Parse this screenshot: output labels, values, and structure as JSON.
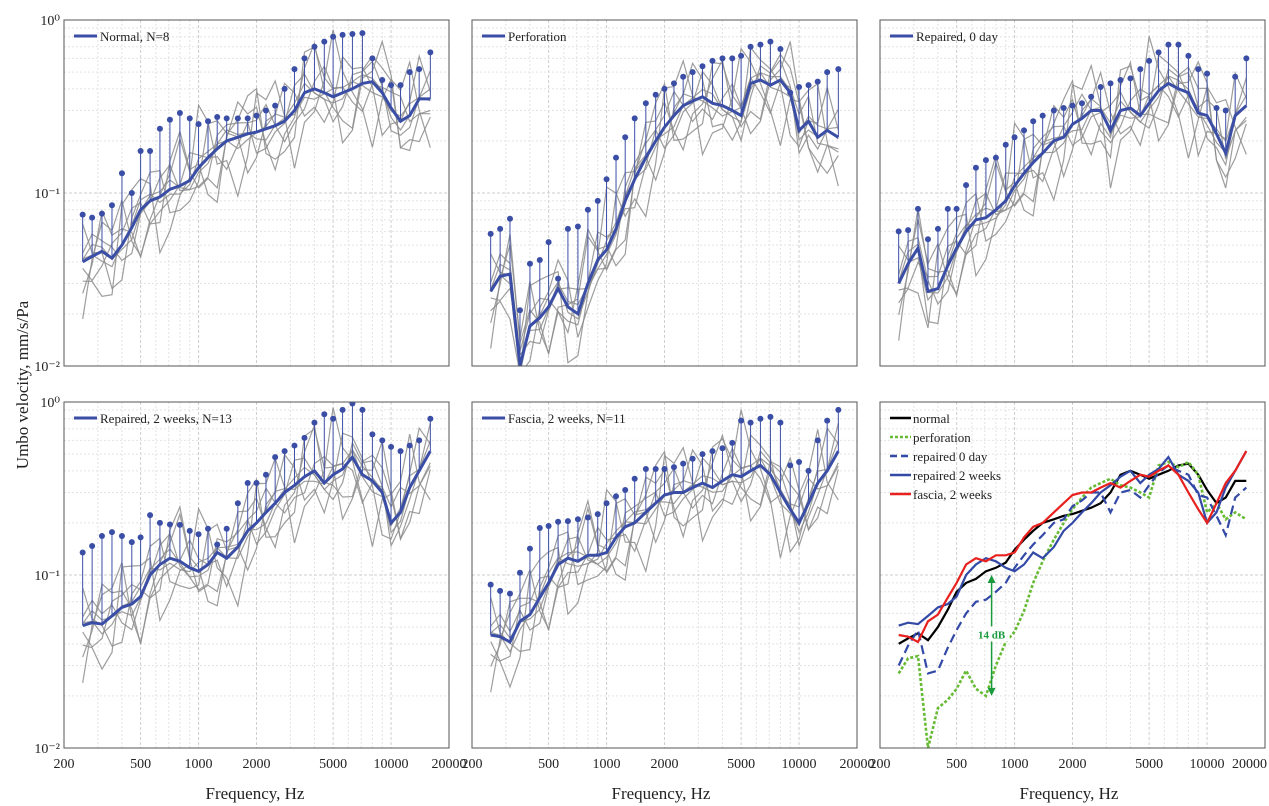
{
  "figure": {
    "ylabel": "Umbo velocity, mm/s/Pa",
    "xlabel": "Frequency, Hz"
  },
  "colors": {
    "mean": "#3b4ea6",
    "individual": "#8c8c8c",
    "normal": "#000000",
    "perforation": "#66bb33",
    "repaired": "#3349a6",
    "fascia": "#e8201e",
    "annotation": "#1a9a3c"
  },
  "axes": {
    "xscale": "log",
    "yscale": "log",
    "xlim": [
      200,
      20000
    ],
    "ylim": [
      0.01,
      1
    ],
    "xticks": [
      200,
      500,
      1000,
      2000,
      5000,
      10000,
      20000
    ],
    "xtick_labels": [
      "200",
      "500",
      "1000",
      "2000",
      "5000",
      "10000",
      "20000"
    ],
    "ytick_labels": [
      "10⁻²",
      "10⁻¹",
      "10⁰"
    ],
    "grid": true
  },
  "chart_data": [
    {
      "type": "line",
      "legend": "Normal, N=8",
      "legend_position": "top-left",
      "freq": [
        250,
        280,
        315,
        355,
        400,
        450,
        500,
        560,
        630,
        710,
        800,
        900,
        1000,
        1120,
        1250,
        1400,
        1600,
        1800,
        2000,
        2240,
        2500,
        2800,
        3150,
        3550,
        4000,
        4500,
        5000,
        5600,
        6300,
        7100,
        8000,
        9000,
        10000,
        11200,
        12500,
        14000,
        16000
      ],
      "series": [
        {
          "name": "mean",
          "values": [
            0.04,
            0.043,
            0.046,
            0.042,
            0.05,
            0.063,
            0.08,
            0.09,
            0.095,
            0.105,
            0.11,
            0.118,
            0.14,
            0.16,
            0.18,
            0.2,
            0.21,
            0.22,
            0.225,
            0.235,
            0.245,
            0.26,
            0.3,
            0.38,
            0.4,
            0.38,
            0.36,
            0.38,
            0.4,
            0.43,
            0.44,
            0.38,
            0.31,
            0.26,
            0.28,
            0.35,
            0.35
          ]
        },
        {
          "name": "mean + SD",
          "values": [
            0.075,
            0.072,
            0.076,
            0.085,
            0.13,
            0.1,
            0.175,
            0.175,
            0.235,
            0.265,
            0.29,
            0.27,
            0.25,
            0.26,
            0.275,
            0.27,
            0.27,
            0.27,
            0.28,
            0.3,
            0.32,
            0.4,
            0.52,
            0.6,
            0.7,
            0.75,
            0.8,
            0.82,
            0.83,
            0.84,
            0.6,
            0.45,
            0.42,
            0.42,
            0.5,
            0.52,
            0.65
          ]
        }
      ]
    },
    {
      "type": "line",
      "legend": "Perforation",
      "legend_position": "top-left",
      "freq": [
        250,
        280,
        315,
        355,
        400,
        450,
        500,
        560,
        630,
        710,
        800,
        900,
        1000,
        1120,
        1250,
        1400,
        1600,
        1800,
        2000,
        2240,
        2500,
        2800,
        3150,
        3550,
        4000,
        4500,
        5000,
        5600,
        6300,
        7100,
        8000,
        9000,
        10000,
        11200,
        12500,
        14000,
        16000
      ],
      "series": [
        {
          "name": "mean",
          "values": [
            0.027,
            0.033,
            0.034,
            0.01,
            0.017,
            0.019,
            0.022,
            0.028,
            0.022,
            0.02,
            0.03,
            0.041,
            0.047,
            0.062,
            0.09,
            0.12,
            0.16,
            0.2,
            0.24,
            0.28,
            0.32,
            0.34,
            0.36,
            0.33,
            0.32,
            0.3,
            0.28,
            0.43,
            0.45,
            0.42,
            0.45,
            0.38,
            0.23,
            0.26,
            0.21,
            0.23,
            0.21
          ]
        },
        {
          "name": "mean + SD",
          "values": [
            0.058,
            0.062,
            0.071,
            0.021,
            0.039,
            0.041,
            0.052,
            0.032,
            0.062,
            0.064,
            0.08,
            0.09,
            0.12,
            0.16,
            0.21,
            0.27,
            0.33,
            0.37,
            0.4,
            0.43,
            0.47,
            0.5,
            0.54,
            0.58,
            0.6,
            0.6,
            0.62,
            0.7,
            0.72,
            0.75,
            0.68,
            0.38,
            0.41,
            0.42,
            0.44,
            0.5,
            0.52
          ]
        }
      ]
    },
    {
      "type": "line",
      "legend": "Repaired, 0 day",
      "legend_position": "top-left",
      "freq": [
        250,
        280,
        315,
        355,
        400,
        450,
        500,
        560,
        630,
        710,
        800,
        900,
        1000,
        1120,
        1250,
        1400,
        1600,
        1800,
        2000,
        2240,
        2500,
        2800,
        3150,
        3550,
        4000,
        4500,
        5000,
        5600,
        6300,
        7100,
        8000,
        9000,
        10000,
        11200,
        12500,
        14000,
        16000
      ],
      "series": [
        {
          "name": "mean",
          "values": [
            0.03,
            0.039,
            0.048,
            0.027,
            0.028,
            0.038,
            0.048,
            0.06,
            0.07,
            0.072,
            0.08,
            0.09,
            0.11,
            0.13,
            0.15,
            0.17,
            0.2,
            0.21,
            0.25,
            0.27,
            0.3,
            0.3,
            0.23,
            0.3,
            0.31,
            0.28,
            0.33,
            0.39,
            0.43,
            0.4,
            0.38,
            0.29,
            0.28,
            0.22,
            0.17,
            0.28,
            0.32
          ]
        },
        {
          "name": "mean + SD",
          "values": [
            0.06,
            0.061,
            0.081,
            0.054,
            0.062,
            0.081,
            0.081,
            0.111,
            0.14,
            0.155,
            0.16,
            0.19,
            0.21,
            0.23,
            0.26,
            0.28,
            0.3,
            0.31,
            0.32,
            0.33,
            0.36,
            0.41,
            0.43,
            0.45,
            0.46,
            0.52,
            0.58,
            0.65,
            0.72,
            0.72,
            0.62,
            0.52,
            0.49,
            0.31,
            0.3,
            0.47,
            0.6
          ]
        }
      ]
    },
    {
      "type": "line",
      "legend": "Repaired, 2 weeks, N=13",
      "legend_position": "top-left",
      "freq": [
        250,
        280,
        315,
        355,
        400,
        450,
        500,
        560,
        630,
        710,
        800,
        900,
        1000,
        1120,
        1250,
        1400,
        1600,
        1800,
        2000,
        2240,
        2500,
        2800,
        3150,
        3550,
        4000,
        4500,
        5000,
        5600,
        6300,
        7100,
        8000,
        9000,
        10000,
        11200,
        12500,
        14000,
        16000
      ],
      "series": [
        {
          "name": "mean",
          "values": [
            0.051,
            0.053,
            0.052,
            0.058,
            0.065,
            0.068,
            0.075,
            0.1,
            0.115,
            0.125,
            0.12,
            0.11,
            0.105,
            0.115,
            0.135,
            0.125,
            0.145,
            0.18,
            0.2,
            0.23,
            0.26,
            0.3,
            0.33,
            0.37,
            0.4,
            0.34,
            0.38,
            0.41,
            0.48,
            0.38,
            0.35,
            0.3,
            0.2,
            0.23,
            0.32,
            0.4,
            0.52
          ]
        },
        {
          "name": "mean + SD",
          "values": [
            0.135,
            0.147,
            0.168,
            0.177,
            0.168,
            0.155,
            0.165,
            0.222,
            0.2,
            0.196,
            0.195,
            0.18,
            0.172,
            0.185,
            0.15,
            0.185,
            0.26,
            0.34,
            0.34,
            0.38,
            0.48,
            0.52,
            0.56,
            0.62,
            0.76,
            0.85,
            0.8,
            0.9,
            0.98,
            0.9,
            0.65,
            0.6,
            0.55,
            0.52,
            0.56,
            0.6,
            0.8
          ]
        }
      ]
    },
    {
      "type": "line",
      "legend": "Fascia, 2 weeks, N=11",
      "legend_position": "top-left",
      "freq": [
        250,
        280,
        315,
        355,
        400,
        450,
        500,
        560,
        630,
        710,
        800,
        900,
        1000,
        1120,
        1250,
        1400,
        1600,
        1800,
        2000,
        2240,
        2500,
        2800,
        3150,
        3550,
        4000,
        4500,
        5000,
        5600,
        6300,
        7100,
        8000,
        9000,
        10000,
        11200,
        12500,
        14000,
        16000
      ],
      "series": [
        {
          "name": "mean",
          "values": [
            0.045,
            0.044,
            0.041,
            0.054,
            0.059,
            0.074,
            0.09,
            0.115,
            0.125,
            0.12,
            0.13,
            0.13,
            0.135,
            0.165,
            0.19,
            0.2,
            0.23,
            0.26,
            0.29,
            0.3,
            0.3,
            0.32,
            0.34,
            0.32,
            0.35,
            0.38,
            0.37,
            0.4,
            0.43,
            0.38,
            0.3,
            0.24,
            0.2,
            0.26,
            0.34,
            0.4,
            0.52
          ]
        },
        {
          "name": "mean + SD",
          "values": [
            0.088,
            0.081,
            0.078,
            0.103,
            0.142,
            0.187,
            0.192,
            0.203,
            0.205,
            0.21,
            0.215,
            0.225,
            0.26,
            0.285,
            0.31,
            0.36,
            0.41,
            0.41,
            0.41,
            0.42,
            0.44,
            0.47,
            0.5,
            0.52,
            0.54,
            0.58,
            0.78,
            0.76,
            0.8,
            0.82,
            0.76,
            0.43,
            0.45,
            0.4,
            0.6,
            0.78,
            0.9
          ]
        }
      ]
    },
    {
      "type": "line",
      "legend_position": "top-left",
      "freq": [
        250,
        280,
        315,
        355,
        400,
        450,
        500,
        560,
        630,
        710,
        800,
        900,
        1000,
        1120,
        1250,
        1400,
        1600,
        1800,
        2000,
        2240,
        2500,
        2800,
        3150,
        3550,
        4000,
        4500,
        5000,
        5600,
        6300,
        7100,
        8000,
        9000,
        10000,
        11200,
        12500,
        14000,
        16000
      ],
      "series": [
        {
          "name": "normal",
          "values": [
            0.04,
            0.043,
            0.046,
            0.042,
            0.05,
            0.063,
            0.08,
            0.09,
            0.095,
            0.105,
            0.11,
            0.118,
            0.14,
            0.16,
            0.18,
            0.2,
            0.21,
            0.22,
            0.225,
            0.235,
            0.245,
            0.26,
            0.3,
            0.38,
            0.4,
            0.38,
            0.36,
            0.38,
            0.4,
            0.43,
            0.44,
            0.38,
            0.31,
            0.26,
            0.28,
            0.35,
            0.35
          ]
        },
        {
          "name": "perforation",
          "values": [
            0.027,
            0.033,
            0.034,
            0.01,
            0.017,
            0.019,
            0.022,
            0.028,
            0.022,
            0.02,
            0.03,
            0.041,
            0.047,
            0.062,
            0.09,
            0.12,
            0.16,
            0.2,
            0.24,
            0.28,
            0.32,
            0.34,
            0.36,
            0.33,
            0.32,
            0.3,
            0.28,
            0.43,
            0.45,
            0.42,
            0.45,
            0.38,
            0.23,
            0.26,
            0.21,
            0.23,
            0.21
          ]
        },
        {
          "name": "repaired 0 day",
          "values": [
            0.03,
            0.039,
            0.048,
            0.027,
            0.028,
            0.038,
            0.048,
            0.06,
            0.07,
            0.072,
            0.08,
            0.09,
            0.11,
            0.13,
            0.15,
            0.17,
            0.2,
            0.21,
            0.25,
            0.27,
            0.3,
            0.3,
            0.23,
            0.3,
            0.31,
            0.28,
            0.33,
            0.39,
            0.43,
            0.4,
            0.38,
            0.29,
            0.28,
            0.22,
            0.17,
            0.28,
            0.32
          ]
        },
        {
          "name": "repaired 2 weeks",
          "values": [
            0.051,
            0.053,
            0.052,
            0.058,
            0.065,
            0.068,
            0.075,
            0.1,
            0.115,
            0.125,
            0.12,
            0.11,
            0.105,
            0.115,
            0.135,
            0.125,
            0.145,
            0.18,
            0.2,
            0.23,
            0.26,
            0.3,
            0.33,
            0.37,
            0.4,
            0.34,
            0.38,
            0.41,
            0.48,
            0.38,
            0.35,
            0.3,
            0.2,
            0.23,
            0.32,
            0.4,
            0.52
          ]
        },
        {
          "name": "fascia, 2 weeks",
          "values": [
            0.045,
            0.044,
            0.041,
            0.054,
            0.059,
            0.074,
            0.09,
            0.115,
            0.125,
            0.12,
            0.13,
            0.13,
            0.135,
            0.165,
            0.19,
            0.2,
            0.23,
            0.26,
            0.29,
            0.3,
            0.3,
            0.32,
            0.34,
            0.32,
            0.35,
            0.38,
            0.37,
            0.4,
            0.43,
            0.38,
            0.3,
            0.24,
            0.2,
            0.26,
            0.34,
            0.4,
            0.52
          ]
        }
      ],
      "annotations": [
        {
          "text": "14 dB",
          "x": 760,
          "y_from": 0.02,
          "y_to": 0.1
        }
      ]
    }
  ]
}
